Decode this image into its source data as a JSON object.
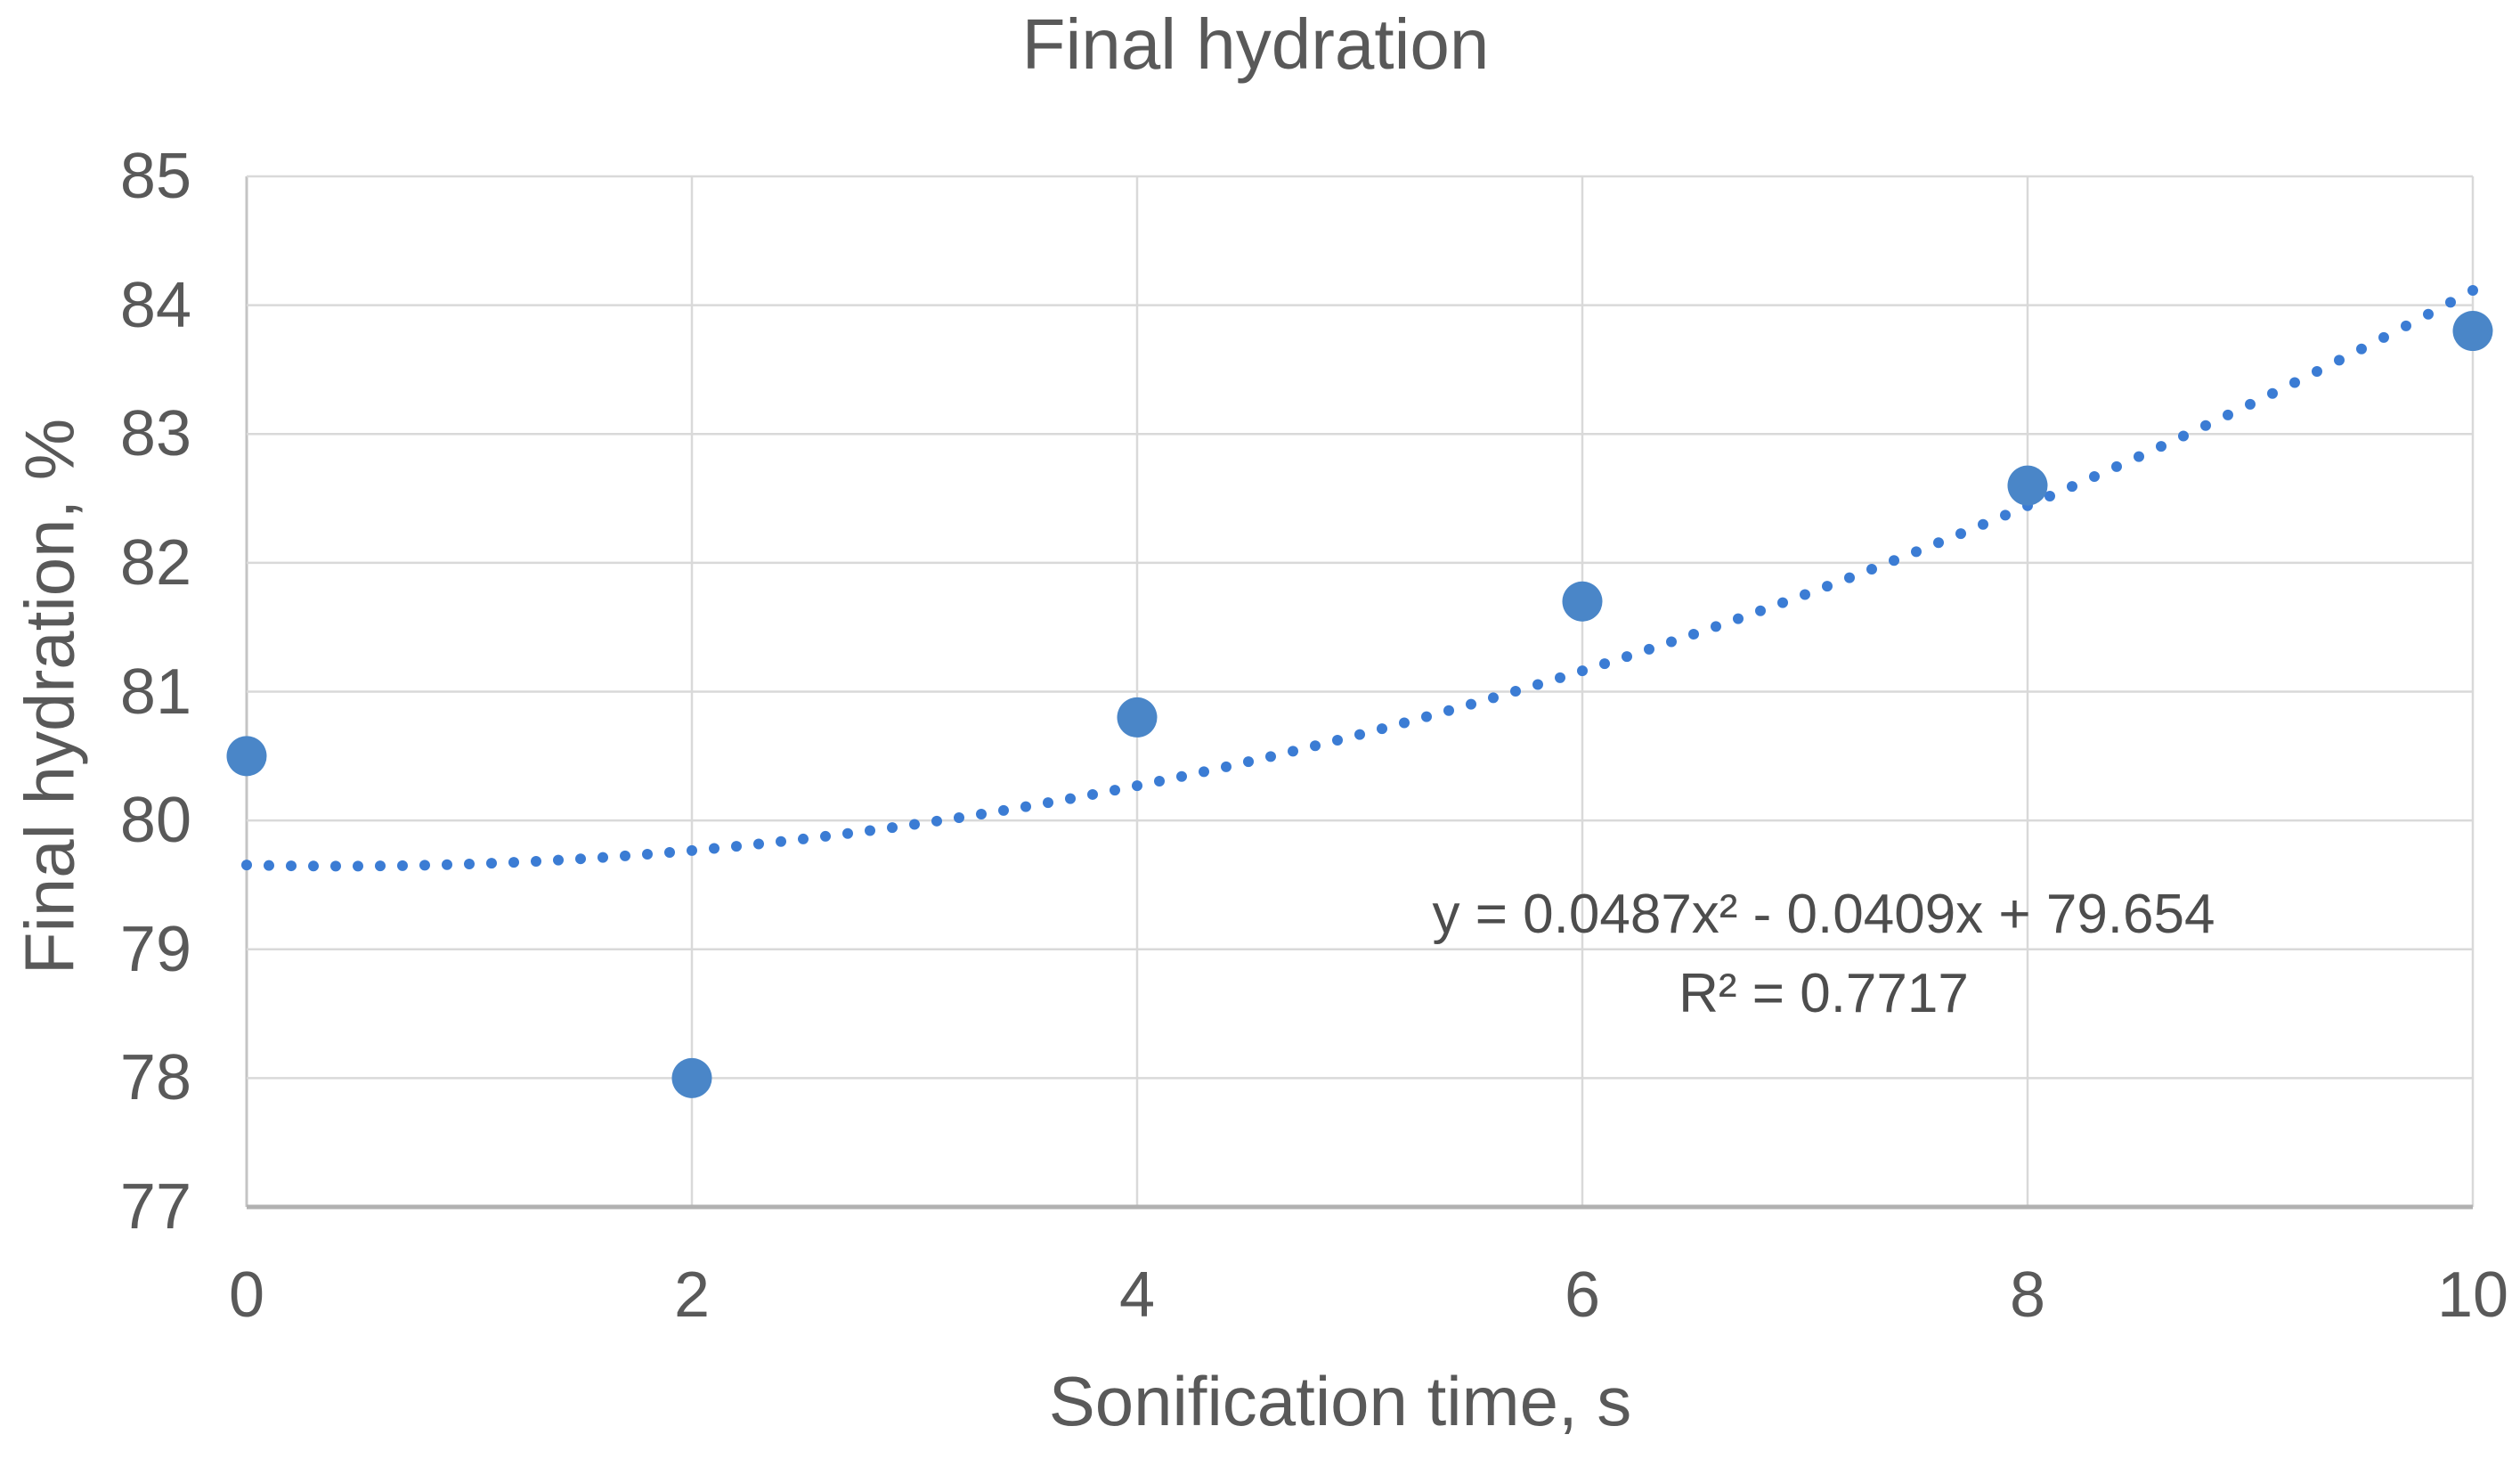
{
  "chart_data": {
    "type": "scatter",
    "title": "Final hydration",
    "xlabel": "Sonification time, s",
    "ylabel": "Final hydration, %",
    "x": [
      0,
      2,
      4,
      6,
      8,
      10
    ],
    "y": [
      80.5,
      78,
      80.8,
      81.7,
      82.6,
      83.8
    ],
    "xlim": [
      0,
      10
    ],
    "ylim": [
      77,
      85
    ],
    "x_ticks": [
      0,
      2,
      4,
      6,
      8,
      10
    ],
    "y_ticks": [
      85,
      84,
      83,
      82,
      81,
      80,
      79,
      78,
      77
    ],
    "grid": true,
    "legend": "none",
    "trendline": {
      "type": "polynomial",
      "order": 2,
      "coefficients": {
        "a": 0.0487,
        "b": -0.0409,
        "c": 79.654
      },
      "x_range": [
        0,
        10.05
      ],
      "equation_label": "y = 0.0487x² - 0.0409x + 79.654",
      "r_squared_label": "R² = 0.7717",
      "style": "dotted"
    },
    "colors": {
      "marker": "#4a86c8",
      "trendline": "#3b7cd4",
      "gridline": "#d9d9d9",
      "y_axis_line": "#c4c4c4",
      "x_axis_line": "#b1b1b1",
      "text": "#595959",
      "background": "#ffffff"
    }
  }
}
